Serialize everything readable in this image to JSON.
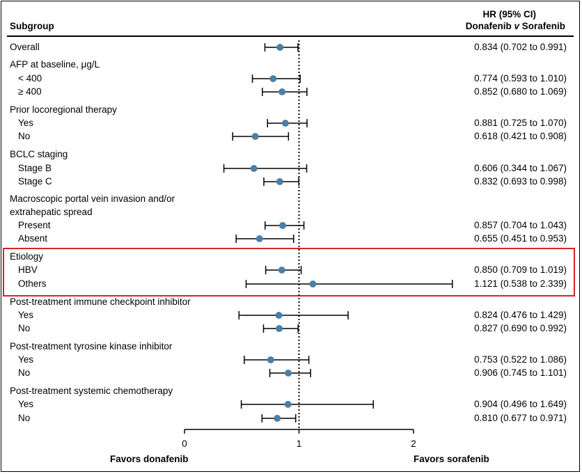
{
  "chart_data": {
    "type": "forest",
    "column_headers": {
      "subgroup": "Subgroup",
      "hr_line1": "HR (95% CI)",
      "hr_line2_a": "Donafenib ",
      "hr_line2_v": "v",
      "hr_line2_b": " Sorafenib"
    },
    "rows": [
      {
        "label": "Overall",
        "kind": "row",
        "hr": 0.834,
        "lo": 0.702,
        "hi": 0.991,
        "ci_text": "0.834 (0.702 to 0.991)"
      },
      {
        "label": "AFP at baseline, μg/L",
        "kind": "group"
      },
      {
        "label": "< 400",
        "kind": "sub",
        "hr": 0.774,
        "lo": 0.593,
        "hi": 1.01,
        "ci_text": "0.774 (0.593 to 1.010)"
      },
      {
        "label": "≥ 400",
        "kind": "sub",
        "hr": 0.852,
        "lo": 0.68,
        "hi": 1.069,
        "ci_text": "0.852 (0.680 to 1.069)"
      },
      {
        "label": "Prior locoregional therapy",
        "kind": "group"
      },
      {
        "label": "Yes",
        "kind": "sub",
        "hr": 0.881,
        "lo": 0.725,
        "hi": 1.07,
        "ci_text": "0.881 (0.725 to 1.070)"
      },
      {
        "label": "No",
        "kind": "sub",
        "hr": 0.618,
        "lo": 0.421,
        "hi": 0.908,
        "ci_text": "0.618 (0.421 to  0.908)"
      },
      {
        "label": "BCLC staging",
        "kind": "group"
      },
      {
        "label": "Stage B",
        "kind": "sub",
        "hr": 0.606,
        "lo": 0.344,
        "hi": 1.067,
        "ci_text": "0.606 (0.344 to 1.067)"
      },
      {
        "label": "Stage C",
        "kind": "sub",
        "hr": 0.832,
        "lo": 0.693,
        "hi": 0.998,
        "ci_text": "0.832 (0.693 to 0.998)"
      },
      {
        "label": "Macroscopic portal vein invasion and/or",
        "kind": "group"
      },
      {
        "label": "extrahepatic spread",
        "kind": "group-cont"
      },
      {
        "label": "Present",
        "kind": "sub",
        "hr": 0.857,
        "lo": 0.704,
        "hi": 1.043,
        "ci_text": "0.857 (0.704 to 1.043)"
      },
      {
        "label": "Absent",
        "kind": "sub",
        "hr": 0.655,
        "lo": 0.451,
        "hi": 0.953,
        "ci_text": "0.655 (0.451 to 0.953)"
      },
      {
        "label": "Etiology",
        "kind": "group"
      },
      {
        "label": "HBV",
        "kind": "sub",
        "hr": 0.85,
        "lo": 0.709,
        "hi": 1.019,
        "ci_text": "0.850 (0.709 to 1.019)"
      },
      {
        "label": "Others",
        "kind": "sub",
        "hr": 1.121,
        "lo": 0.538,
        "hi": 2.339,
        "ci_text": "1.121 (0.538 to 2.339)"
      },
      {
        "label": "Post-treatment immune checkpoint inhibitor",
        "kind": "group"
      },
      {
        "label": "Yes",
        "kind": "sub",
        "hr": 0.824,
        "lo": 0.476,
        "hi": 1.429,
        "ci_text": "0.824 (0.476 to 1.429)"
      },
      {
        "label": "No",
        "kind": "sub",
        "hr": 0.827,
        "lo": 0.69,
        "hi": 0.992,
        "ci_text": "0.827 (0.690 to 0.992)"
      },
      {
        "label": "Post-treatment tyrosine kinase inhibitor",
        "kind": "group"
      },
      {
        "label": "Yes",
        "kind": "sub",
        "hr": 0.753,
        "lo": 0.522,
        "hi": 1.086,
        "ci_text": "0.753 (0.522 to 1.086)"
      },
      {
        "label": "No",
        "kind": "sub",
        "hr": 0.906,
        "lo": 0.745,
        "hi": 1.101,
        "ci_text": "0.906 (0.745 to 1.101)"
      },
      {
        "label": "Post-treatment systemic chemotherapy",
        "kind": "group"
      },
      {
        "label": "Yes",
        "kind": "sub",
        "hr": 0.904,
        "lo": 0.496,
        "hi": 1.649,
        "ci_text": "0.904 (0.496 to 1.649)"
      },
      {
        "label": "No",
        "kind": "sub",
        "hr": 0.81,
        "lo": 0.677,
        "hi": 0.971,
        "ci_text": "0.810 (0.677 to 0.971)"
      }
    ],
    "highlighted_group": "Etiology",
    "x_axis": {
      "ticks": [
        0,
        1,
        2
      ],
      "tick_labels": [
        "0",
        "1",
        "2"
      ],
      "xlim": [
        0,
        2
      ],
      "reference_line": 1,
      "left_label": "Favors donafenib",
      "right_label": "Favors sorafenib"
    },
    "colors": {
      "marker": "#4a7fa8",
      "highlight_box": "#d0262d"
    }
  }
}
